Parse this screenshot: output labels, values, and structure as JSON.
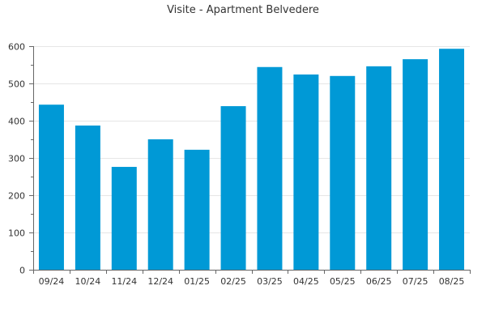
{
  "chart_data": {
    "type": "bar",
    "title": "Visite - Apartment Belvedere",
    "xlabel": "",
    "ylabel": "",
    "categories": [
      "09/24",
      "10/24",
      "11/24",
      "12/24",
      "01/25",
      "02/25",
      "03/25",
      "04/25",
      "05/25",
      "06/25",
      "07/25",
      "08/25"
    ],
    "values": [
      443,
      387,
      276,
      350,
      322,
      439,
      544,
      524,
      520,
      546,
      565,
      593
    ],
    "ylim": [
      0,
      600
    ],
    "yticks": [
      0,
      100,
      200,
      300,
      400,
      500,
      600
    ],
    "grid": true,
    "legend": "none",
    "colors": {
      "bar": "#0099d6",
      "axis": "#666666",
      "grid": "#e6e6e6",
      "text": "#333333"
    }
  }
}
